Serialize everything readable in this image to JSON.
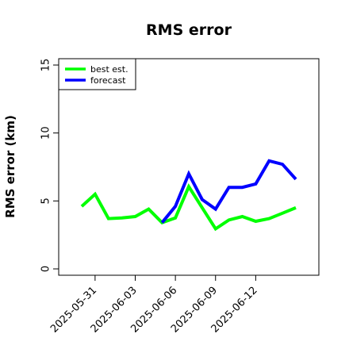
{
  "chart_data": {
    "type": "line",
    "title": "RMS error",
    "xlabel": "",
    "ylabel": "RMS error (km)",
    "x": [
      "2025-05-30",
      "2025-05-31",
      "2025-06-01",
      "2025-06-02",
      "2025-06-03",
      "2025-06-04",
      "2025-06-05",
      "2025-06-06",
      "2025-06-07",
      "2025-06-08",
      "2025-06-09",
      "2025-06-10",
      "2025-06-11",
      "2025-06-12",
      "2025-06-13",
      "2025-06-14",
      "2025-06-15"
    ],
    "xticks": [
      "2025-05-31",
      "2025-06-03",
      "2025-06-06",
      "2025-06-09",
      "2025-06-12"
    ],
    "yticks": [
      0,
      5,
      10,
      15
    ],
    "ylim": [
      0,
      15.5
    ],
    "grid": false,
    "legend_position": "top-left",
    "series": [
      {
        "name": "best est.",
        "color": "#00ff00",
        "values": [
          4.6,
          5.5,
          3.7,
          3.75,
          3.85,
          4.4,
          3.4,
          3.75,
          6.05,
          4.5,
          2.95,
          3.6,
          3.85,
          3.5,
          3.7,
          4.1,
          4.5
        ]
      },
      {
        "name": "forecast",
        "color": "#0000ff",
        "values": [
          null,
          null,
          null,
          null,
          null,
          null,
          3.4,
          4.6,
          7.0,
          5.1,
          4.4,
          6.0,
          6.0,
          6.25,
          7.95,
          7.7,
          6.6
        ]
      }
    ]
  }
}
